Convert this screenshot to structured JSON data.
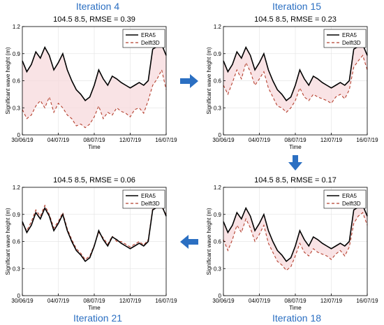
{
  "labels": {
    "iterations": [
      "Iteration 4",
      "Iteration 15",
      "Iteration 18",
      "Iteration 21"
    ]
  },
  "colors": {
    "era5": "#000000",
    "delft3d": "#b5402e",
    "delft_fill": "#f7d9dc",
    "accent": "#2b6fc2",
    "grid": "#e6e6e6"
  },
  "chart_data": [
    {
      "type": "line",
      "panel": "top-left",
      "title": "104.5 8.5, RMSE = 0.39",
      "xlabel": "Time",
      "ylabel": "Significant wave height (m)",
      "ylim": [
        0,
        1.2
      ],
      "yticks": [
        "0",
        "0.3",
        "0.6",
        "0.9",
        "1.2"
      ],
      "xticks": [
        "30/06/19",
        "04/07/19",
        "08/07/19",
        "12/07/19",
        "16/07/19"
      ],
      "legend": {
        "position": "top-right",
        "entries": [
          "ERA5",
          "Delft3D"
        ]
      },
      "grid": true,
      "series": [
        {
          "name": "ERA5",
          "x": [
            0,
            0.5,
            1,
            1.5,
            2,
            2.5,
            3,
            3.5,
            4,
            4.5,
            5,
            5.5,
            6,
            6.5,
            7,
            7.5,
            8,
            8.5,
            9,
            9.5,
            10,
            10.5,
            11,
            11.5,
            12,
            12.5,
            13,
            13.5,
            14,
            14.5,
            15,
            15.5,
            16
          ],
          "y": [
            0.82,
            0.7,
            0.78,
            0.92,
            0.85,
            0.97,
            0.88,
            0.72,
            0.8,
            0.9,
            0.72,
            0.6,
            0.5,
            0.45,
            0.38,
            0.42,
            0.55,
            0.72,
            0.62,
            0.55,
            0.65,
            0.62,
            0.58,
            0.55,
            0.52,
            0.55,
            0.58,
            0.55,
            0.6,
            0.95,
            0.98,
            1.0,
            0.88
          ]
        },
        {
          "name": "Delft3D",
          "x": [
            0,
            0.5,
            1,
            1.5,
            2,
            2.5,
            3,
            3.5,
            4,
            4.5,
            5,
            5.5,
            6,
            6.5,
            7,
            7.5,
            8,
            8.5,
            9,
            9.5,
            10,
            10.5,
            11,
            11.5,
            12,
            12.5,
            13,
            13.5,
            14,
            14.5,
            15,
            15.5,
            16
          ],
          "y": [
            0.28,
            0.18,
            0.22,
            0.32,
            0.38,
            0.3,
            0.42,
            0.25,
            0.35,
            0.3,
            0.22,
            0.18,
            0.1,
            0.12,
            0.08,
            0.12,
            0.2,
            0.32,
            0.18,
            0.25,
            0.22,
            0.3,
            0.26,
            0.24,
            0.2,
            0.28,
            0.3,
            0.24,
            0.38,
            0.55,
            0.62,
            0.72,
            0.5
          ]
        }
      ]
    },
    {
      "type": "line",
      "panel": "top-right",
      "title": "104.5 8.5, RMSE = 0.23",
      "xlabel": "Time",
      "ylabel": "Significant wave height (m)",
      "ylim": [
        0,
        1.2
      ],
      "yticks": [
        "0",
        "0.3",
        "0.6",
        "0.9",
        "1.2"
      ],
      "xticks": [
        "30/06/19",
        "04/07/19",
        "08/07/19",
        "12/07/19",
        "16/07/19"
      ],
      "legend": {
        "position": "top-right",
        "entries": [
          "ERA5",
          "Delft3D"
        ]
      },
      "grid": true,
      "series": [
        {
          "name": "ERA5",
          "x": [
            0,
            0.5,
            1,
            1.5,
            2,
            2.5,
            3,
            3.5,
            4,
            4.5,
            5,
            5.5,
            6,
            6.5,
            7,
            7.5,
            8,
            8.5,
            9,
            9.5,
            10,
            10.5,
            11,
            11.5,
            12,
            12.5,
            13,
            13.5,
            14,
            14.5,
            15,
            15.5,
            16
          ],
          "y": [
            0.82,
            0.7,
            0.78,
            0.92,
            0.85,
            0.97,
            0.88,
            0.72,
            0.8,
            0.9,
            0.72,
            0.6,
            0.5,
            0.45,
            0.38,
            0.42,
            0.55,
            0.72,
            0.62,
            0.55,
            0.65,
            0.62,
            0.58,
            0.55,
            0.52,
            0.55,
            0.58,
            0.55,
            0.6,
            0.95,
            0.98,
            1.0,
            0.88
          ]
        },
        {
          "name": "Delft3D",
          "x": [
            0,
            0.5,
            1,
            1.5,
            2,
            2.5,
            3,
            3.5,
            4,
            4.5,
            5,
            5.5,
            6,
            6.5,
            7,
            7.5,
            8,
            8.5,
            9,
            9.5,
            10,
            10.5,
            11,
            11.5,
            12,
            12.5,
            13,
            13.5,
            14,
            14.5,
            15,
            15.5,
            16
          ],
          "y": [
            0.55,
            0.45,
            0.58,
            0.72,
            0.62,
            0.8,
            0.7,
            0.55,
            0.62,
            0.7,
            0.52,
            0.42,
            0.32,
            0.3,
            0.25,
            0.3,
            0.38,
            0.52,
            0.42,
            0.38,
            0.45,
            0.42,
            0.4,
            0.38,
            0.35,
            0.42,
            0.45,
            0.4,
            0.5,
            0.75,
            0.82,
            0.88,
            0.72
          ]
        }
      ]
    },
    {
      "type": "line",
      "panel": "bottom-left",
      "title": "104.5 8.5, RMSE = 0.06",
      "xlabel": "Time",
      "ylabel": "Significant wave height (m)",
      "ylim": [
        0,
        1.2
      ],
      "yticks": [
        "0",
        "0.3",
        "0.6",
        "0.9",
        "1.2"
      ],
      "xticks": [
        "30/06/19",
        "04/07/19",
        "08/07/19",
        "12/07/19",
        "16/07/19"
      ],
      "legend": {
        "position": "top-right",
        "entries": [
          "ERA5",
          "Delft3D"
        ]
      },
      "grid": true,
      "series": [
        {
          "name": "ERA5",
          "x": [
            0,
            0.5,
            1,
            1.5,
            2,
            2.5,
            3,
            3.5,
            4,
            4.5,
            5,
            5.5,
            6,
            6.5,
            7,
            7.5,
            8,
            8.5,
            9,
            9.5,
            10,
            10.5,
            11,
            11.5,
            12,
            12.5,
            13,
            13.5,
            14,
            14.5,
            15,
            15.5,
            16
          ],
          "y": [
            0.82,
            0.7,
            0.78,
            0.92,
            0.85,
            0.97,
            0.88,
            0.72,
            0.8,
            0.9,
            0.72,
            0.6,
            0.5,
            0.45,
            0.38,
            0.42,
            0.55,
            0.72,
            0.62,
            0.55,
            0.65,
            0.62,
            0.58,
            0.55,
            0.52,
            0.55,
            0.58,
            0.55,
            0.6,
            0.95,
            0.98,
            1.0,
            0.88
          ]
        },
        {
          "name": "Delft3D",
          "x": [
            0,
            0.5,
            1,
            1.5,
            2,
            2.5,
            3,
            3.5,
            4,
            4.5,
            5,
            5.5,
            6,
            6.5,
            7,
            7.5,
            8,
            8.5,
            9,
            9.5,
            10,
            10.5,
            11,
            11.5,
            12,
            12.5,
            13,
            13.5,
            14,
            14.5,
            15,
            15.5,
            16
          ],
          "y": [
            0.8,
            0.72,
            0.82,
            0.95,
            0.88,
            1.0,
            0.9,
            0.75,
            0.82,
            0.92,
            0.74,
            0.62,
            0.52,
            0.47,
            0.4,
            0.44,
            0.56,
            0.7,
            0.64,
            0.57,
            0.66,
            0.6,
            0.6,
            0.57,
            0.54,
            0.57,
            0.6,
            0.56,
            0.62,
            0.97,
            1.0,
            0.98,
            0.9
          ]
        }
      ]
    },
    {
      "type": "line",
      "panel": "bottom-right",
      "title": "104.5 8.5, RMSE = 0.17",
      "xlabel": "Time",
      "ylabel": "Significant wave height (m)",
      "ylim": [
        0,
        1.2
      ],
      "yticks": [
        "0",
        "0.3",
        "0.6",
        "0.9",
        "1.2"
      ],
      "xticks": [
        "30/06/19",
        "04/07/19",
        "08/07/19",
        "12/07/19",
        "16/07/19"
      ],
      "legend": {
        "position": "top-right",
        "entries": [
          "ERA5",
          "Delft3D"
        ]
      },
      "grid": true,
      "series": [
        {
          "name": "ERA5",
          "x": [
            0,
            0.5,
            1,
            1.5,
            2,
            2.5,
            3,
            3.5,
            4,
            4.5,
            5,
            5.5,
            6,
            6.5,
            7,
            7.5,
            8,
            8.5,
            9,
            9.5,
            10,
            10.5,
            11,
            11.5,
            12,
            12.5,
            13,
            13.5,
            14,
            14.5,
            15,
            15.5,
            16
          ],
          "y": [
            0.82,
            0.7,
            0.78,
            0.92,
            0.85,
            0.97,
            0.88,
            0.72,
            0.8,
            0.9,
            0.72,
            0.6,
            0.5,
            0.45,
            0.38,
            0.42,
            0.55,
            0.72,
            0.62,
            0.55,
            0.65,
            0.62,
            0.58,
            0.55,
            0.52,
            0.55,
            0.58,
            0.55,
            0.6,
            0.95,
            0.98,
            1.0,
            0.88
          ]
        },
        {
          "name": "Delft3D",
          "x": [
            0,
            0.5,
            1,
            1.5,
            2,
            2.5,
            3,
            3.5,
            4,
            4.5,
            5,
            5.5,
            6,
            6.5,
            7,
            7.5,
            8,
            8.5,
            9,
            9.5,
            10,
            10.5,
            11,
            11.5,
            12,
            12.5,
            13,
            13.5,
            14,
            14.5,
            15,
            15.5,
            16
          ],
          "y": [
            0.62,
            0.5,
            0.62,
            0.78,
            0.7,
            0.85,
            0.75,
            0.6,
            0.68,
            0.78,
            0.58,
            0.48,
            0.38,
            0.34,
            0.28,
            0.32,
            0.44,
            0.58,
            0.48,
            0.44,
            0.52,
            0.48,
            0.46,
            0.44,
            0.4,
            0.46,
            0.5,
            0.44,
            0.54,
            0.8,
            0.88,
            0.92,
            0.78
          ]
        }
      ]
    }
  ]
}
